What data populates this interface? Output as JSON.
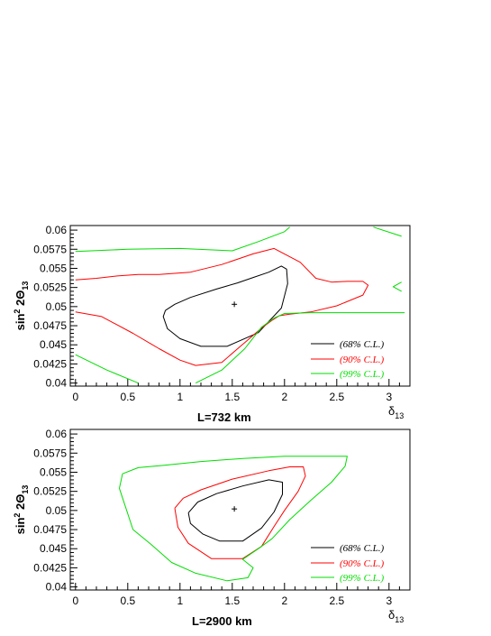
{
  "chart_data": [
    {
      "type": "line",
      "title": "L=732 km",
      "xlabel": "δ13",
      "ylabel": "sin² 2Θ13",
      "xlim": [
        -0.05,
        3.2
      ],
      "ylim": [
        0.0396,
        0.0606
      ],
      "xticks": [
        "0",
        "0.5",
        "1",
        "1.5",
        "2",
        "2.5",
        "3"
      ],
      "yticks": [
        "0.04",
        "0.0425",
        "0.045",
        "0.0475",
        "0.05",
        "0.0525",
        "0.055",
        "0.0575",
        "0.06"
      ],
      "best_fit": {
        "x": 1.52,
        "y": 0.0503,
        "marker": "+"
      },
      "legend_position": "bottom-right",
      "series": [
        {
          "name": "(68% C.L.)",
          "color": "#000000",
          "x": [
            0.86,
            0.84,
            0.88,
            1.0,
            1.2,
            1.45,
            1.75,
            1.97,
            2.03,
            2.02,
            1.97,
            1.85,
            1.7,
            1.55,
            1.45,
            1.35,
            1.1,
            0.95,
            0.86
          ],
          "y": [
            0.0495,
            0.0487,
            0.0471,
            0.0458,
            0.0448,
            0.0448,
            0.0466,
            0.0498,
            0.053,
            0.0549,
            0.0553,
            0.0545,
            0.0538,
            0.0531,
            0.0527,
            0.0523,
            0.0512,
            0.0503,
            0.0495
          ]
        },
        {
          "name": "(90% C.L.)",
          "color": "#ff0000",
          "x": [
            0.0,
            0.25,
            0.55,
            0.8,
            1.0,
            1.15,
            1.4,
            1.62,
            1.78,
            1.88,
            1.95,
            2.05,
            2.25,
            2.5,
            2.75,
            2.8,
            2.75,
            2.6,
            2.45,
            2.3,
            2.15,
            1.9,
            1.7,
            1.4,
            1.1,
            0.8,
            0.6,
            0.4,
            0.2,
            0.0
          ],
          "y": [
            0.0493,
            0.0487,
            0.0465,
            0.0445,
            0.043,
            0.0423,
            0.0427,
            0.0453,
            0.0472,
            0.0482,
            0.0488,
            0.049,
            0.0493,
            0.0501,
            0.0515,
            0.0528,
            0.0533,
            0.0533,
            0.0532,
            0.0537,
            0.0558,
            0.0576,
            0.0569,
            0.0555,
            0.0545,
            0.0542,
            0.0542,
            0.054,
            0.0537,
            0.0535
          ]
        },
        {
          "name": "(99% C.L.)",
          "color": "#00dd00",
          "segments": [
            {
              "x": [
                0.0,
                0.3,
                0.6
              ],
              "y": [
                0.0437,
                0.0417,
                0.04
              ]
            },
            {
              "x": [
                1.15,
                1.4,
                1.62,
                1.78,
                1.9,
                2.0,
                2.25,
                2.7,
                3.15
              ],
              "y": [
                0.04,
                0.0417,
                0.0445,
                0.0473,
                0.0485,
                0.0491,
                0.0492,
                0.0492,
                0.0492
              ]
            },
            {
              "x": [
                0.0,
                0.5,
                1.0,
                1.5,
                1.75,
                2.0,
                2.05
              ],
              "y": [
                0.0572,
                0.0575,
                0.0576,
                0.0573,
                0.0585,
                0.0598,
                0.0604
              ]
            },
            {
              "x": [
                2.85,
                3.12
              ],
              "y": [
                0.0604,
                0.0592
              ]
            },
            {
              "x": [
                3.12,
                3.04,
                3.12
              ],
              "y": [
                0.0532,
                0.0526,
                0.052
              ]
            }
          ]
        }
      ]
    },
    {
      "type": "line",
      "title": "L=2900 km",
      "xlabel": "δ13",
      "ylabel": "sin² 2Θ13",
      "xlim": [
        -0.05,
        3.2
      ],
      "ylim": [
        0.0396,
        0.0606
      ],
      "xticks": [
        "0",
        "0.5",
        "1",
        "1.5",
        "2",
        "2.5",
        "3"
      ],
      "yticks": [
        "0.04",
        "0.0425",
        "0.045",
        "0.0475",
        "0.05",
        "0.0525",
        "0.055",
        "0.0575",
        "0.06"
      ],
      "best_fit": {
        "x": 1.52,
        "y": 0.0502,
        "marker": "+"
      },
      "legend_position": "bottom-right",
      "series": [
        {
          "name": "(68% C.L.)",
          "color": "#000000",
          "x": [
            1.08,
            1.1,
            1.22,
            1.38,
            1.6,
            1.78,
            1.9,
            1.98,
            1.98,
            1.85,
            1.6,
            1.35,
            1.17,
            1.08
          ],
          "y": [
            0.0497,
            0.0483,
            0.0469,
            0.046,
            0.046,
            0.0477,
            0.0498,
            0.0521,
            0.0537,
            0.054,
            0.0532,
            0.0522,
            0.0511,
            0.0497
          ]
        },
        {
          "name": "(90% C.L.)",
          "color": "#ff0000",
          "x": [
            0.95,
            0.98,
            1.08,
            1.3,
            1.6,
            1.78,
            1.9,
            2.0,
            2.13,
            2.2,
            2.18,
            2.05,
            1.85,
            1.5,
            1.2,
            1.03,
            0.95
          ],
          "y": [
            0.0503,
            0.0478,
            0.0457,
            0.0437,
            0.0437,
            0.0453,
            0.0479,
            0.05,
            0.0525,
            0.0545,
            0.0557,
            0.0557,
            0.0552,
            0.0541,
            0.0527,
            0.0516,
            0.0503
          ]
        },
        {
          "name": "(99% C.L.)",
          "color": "#00dd00",
          "x": [
            0.55,
            0.72,
            0.92,
            1.15,
            1.45,
            1.65,
            1.7,
            1.6,
            1.75,
            1.88,
            2.05,
            2.25,
            2.45,
            2.58,
            2.6,
            2.5,
            2.25,
            2.0,
            1.6,
            1.2,
            0.85,
            0.6,
            0.45,
            0.42,
            0.55
          ],
          "y": [
            0.0475,
            0.0456,
            0.0432,
            0.0418,
            0.0408,
            0.0412,
            0.0425,
            0.0436,
            0.045,
            0.0463,
            0.0488,
            0.0513,
            0.0537,
            0.0558,
            0.0571,
            0.0571,
            0.0571,
            0.0571,
            0.0568,
            0.0564,
            0.0559,
            0.0556,
            0.0548,
            0.0529,
            0.0475
          ]
        }
      ]
    }
  ]
}
